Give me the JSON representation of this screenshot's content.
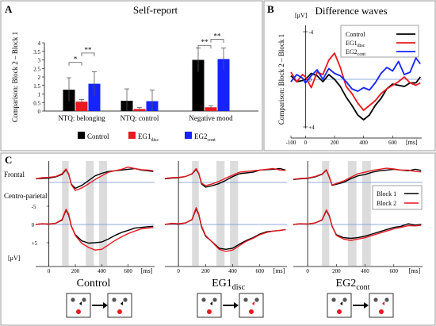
{
  "panel_a": {
    "letter": "A",
    "title": "Self-report",
    "ylabel": "Comparison: Block 2 – Block 1",
    "sig": [
      "*",
      "**",
      "**",
      "**"
    ],
    "legend_main": [
      "Control",
      "EG1",
      "EG2"
    ],
    "legend_sub": [
      "",
      "disc",
      "cont"
    ]
  },
  "panel_b": {
    "letter": "B",
    "title": "Difference waves",
    "unit_label": "[μV]",
    "ms_label": "[ms]",
    "ylabel": "Comparison: Block 2 – Block 1",
    "legend_main": [
      "Control",
      "EG1",
      "EG2"
    ],
    "legend_sub": [
      "",
      "disc",
      "cont"
    ]
  },
  "panel_c": {
    "letter": "C",
    "row_labels": [
      "Frontal",
      "Centro-parietal"
    ],
    "unit_label": "[μV]",
    "ms_label": "[ms]",
    "legend": [
      "Block 1",
      "Block 2"
    ],
    "group_main": [
      "Control",
      "EG1",
      "EG2"
    ],
    "group_sub": [
      "",
      "disc",
      "cont"
    ]
  },
  "colors": {
    "control": "#000000",
    "eg1": "#e8191f",
    "eg2": "#1523ff",
    "block1": "#000000",
    "block2": "#e8191f",
    "zero_line": "#6f8fd6",
    "shade": "#dcdcdc",
    "panel_border": "#9a9a9a"
  },
  "chart_data": [
    {
      "type": "bar",
      "panel": "A",
      "categories": [
        "NTQ: belonging",
        "NTQ: control",
        "Negative mood"
      ],
      "ylim": [
        0,
        4
      ],
      "yticks": [
        0,
        0.5,
        1,
        1.5,
        2,
        2.5,
        3,
        3.5,
        4
      ],
      "ytick_labels": [
        "0",
        "0.5",
        "1",
        "1.5",
        "2",
        "2.5",
        "3",
        "3.5",
        "4"
      ],
      "series": [
        {
          "name": "Control",
          "values": [
            1.25,
            0.6,
            3.0
          ],
          "errors": [
            0.7,
            0.7,
            0.7
          ]
        },
        {
          "name": "EG1disc",
          "values": [
            0.55,
            0.12,
            0.22
          ],
          "errors": [
            0.12,
            0.08,
            0.08
          ]
        },
        {
          "name": "EG2cont",
          "values": [
            1.6,
            0.58,
            3.05
          ],
          "errors": [
            0.7,
            0.65,
            0.65
          ]
        }
      ]
    },
    {
      "type": "line",
      "panel": "B",
      "xlim": [
        -100,
        800
      ],
      "xticks": [
        -100,
        0,
        200,
        400,
        600
      ],
      "xtick_labels": [
        "-100",
        "0",
        "200",
        "400",
        "600"
      ],
      "ylim": [
        -4,
        4
      ],
      "yticks": [
        -4,
        0,
        4
      ],
      "ytick_labels": [
        "-4",
        "0",
        "+4"
      ],
      "y_inverted": true,
      "series": [
        {
          "name": "Control",
          "x": [
            -100,
            -60,
            -20,
            0,
            40,
            80,
            120,
            160,
            200,
            240,
            280,
            320,
            360,
            400,
            440,
            480,
            520,
            560,
            600,
            640,
            680,
            720,
            760,
            790
          ],
          "y": [
            -0.3,
            0.2,
            0.1,
            0,
            -0.5,
            -0.3,
            0.2,
            -0.4,
            0,
            0.6,
            1.5,
            2.2,
            3,
            3.4,
            3.0,
            2.2,
            1.6,
            0.8,
            0.4,
            0.5,
            0.6,
            0.3,
            0.3,
            -0.2
          ]
        },
        {
          "name": "EG1disc",
          "x": [
            -100,
            -60,
            -20,
            0,
            40,
            80,
            120,
            160,
            200,
            240,
            280,
            320,
            360,
            400,
            440,
            480,
            520,
            560,
            600,
            640,
            680,
            720,
            760,
            790
          ],
          "y": [
            -0.6,
            0.2,
            -0.4,
            -0.2,
            0.7,
            -0.6,
            -0.4,
            -1.6,
            -2.2,
            -1.0,
            0.6,
            1.2,
            2.0,
            2.6,
            2.2,
            1.8,
            1.2,
            0.8,
            0.5,
            0.2,
            -0.2,
            0.3,
            0.5,
            0.3
          ]
        },
        {
          "name": "EG2cont",
          "x": [
            -100,
            -60,
            -20,
            0,
            40,
            80,
            120,
            160,
            200,
            240,
            280,
            320,
            360,
            400,
            440,
            480,
            520,
            560,
            600,
            640,
            680,
            720,
            760,
            790
          ],
          "y": [
            0.2,
            -0.4,
            -0.1,
            0.3,
            -0.3,
            -0.8,
            0,
            -0.9,
            -0.5,
            -0.3,
            0.2,
            0.8,
            1.0,
            0.7,
            0.9,
            0.3,
            -0.5,
            -1.0,
            -0.7,
            -1.5,
            -0.4,
            -0.6,
            -1.8,
            -1.3
          ]
        }
      ]
    },
    {
      "type": "line",
      "panel": "C",
      "xlim": [
        -100,
        800
      ],
      "xticks": [
        0,
        200,
        400,
        600
      ],
      "xtick_labels": [
        "0",
        "200",
        "400",
        "600"
      ],
      "ylim": [
        -5,
        5
      ],
      "yticks": [
        -5,
        0,
        5
      ],
      "ytick_labels": [
        "-5",
        "0",
        "+5"
      ],
      "y_inverted": true,
      "shaded_windows": [
        [
          100,
          150
        ],
        [
          280,
          340
        ],
        [
          380,
          440
        ]
      ],
      "groups": [
        {
          "name": "Control",
          "frontal": [
            {
              "name": "Block 1",
              "x": [
                -100,
                -50,
                0,
                50,
                100,
                130,
                150,
                170,
                200,
                250,
                300,
                350,
                400,
                450,
                500,
                550,
                600,
                650,
                700,
                750,
                790
              ],
              "y": [
                -1,
                -1.1,
                -1.2,
                -1.5,
                -2.2,
                -3.5,
                -2.2,
                0.5,
                1.6,
                0.8,
                -0.5,
                -1.8,
                -2.5,
                -3,
                -3.2,
                -3.4,
                -3.6,
                -3.8,
                -3.4,
                -3.2,
                -3.0
              ]
            },
            {
              "name": "Block 2",
              "x": [
                -100,
                -50,
                0,
                50,
                100,
                130,
                150,
                170,
                200,
                250,
                300,
                350,
                400,
                450,
                500,
                550,
                600,
                650,
                700,
                750,
                790
              ],
              "y": [
                -1,
                -1.3,
                -1.4,
                -1.6,
                -2.4,
                -3.7,
                -2.3,
                0.6,
                2.2,
                1.5,
                0.4,
                -0.8,
                -1.8,
                -2.8,
                -3.2,
                -3.6,
                -4.2,
                -3.8,
                -3.5,
                -3.4,
                -3.2
              ]
            }
          ],
          "centro_parietal": [
            {
              "name": "Block 1",
              "x": [
                -100,
                -50,
                0,
                50,
                100,
                130,
                150,
                170,
                200,
                250,
                300,
                350,
                400,
                450,
                500,
                550,
                600,
                650,
                700,
                750,
                790
              ],
              "y": [
                0,
                -0.2,
                -0.1,
                -0.3,
                -1.2,
                -4,
                -2.5,
                0.5,
                2.8,
                4.5,
                5.1,
                5.0,
                4.8,
                4.0,
                3.0,
                2.2,
                1.6,
                1.0,
                0.8,
                0.6,
                0.5
              ]
            },
            {
              "name": "Block 2",
              "x": [
                -100,
                -50,
                0,
                50,
                100,
                130,
                150,
                170,
                200,
                250,
                300,
                350,
                400,
                450,
                500,
                550,
                600,
                650,
                700,
                750,
                790
              ],
              "y": [
                0,
                -0.2,
                -0.1,
                -0.3,
                -1.4,
                -4.2,
                -2.8,
                0.4,
                3.0,
                5.2,
                6.3,
                7.0,
                6.8,
                5.6,
                4.4,
                3.4,
                2.5,
                1.8,
                1.2,
                1.0,
                0.8
              ]
            }
          ]
        },
        {
          "name": "EG1disc",
          "frontal": [
            {
              "name": "Block 1",
              "x": [
                -100,
                -50,
                0,
                50,
                100,
                130,
                150,
                170,
                200,
                250,
                300,
                350,
                400,
                450,
                500,
                550,
                600,
                650,
                700,
                750,
                790
              ],
              "y": [
                -1,
                -1.2,
                -1.3,
                -1.6,
                -2.3,
                -3.6,
                -2.4,
                0.4,
                1.3,
                0.9,
                0.3,
                -0.6,
                -1.6,
                -2.4,
                -2.6,
                -2.8,
                -3.4,
                -3.5,
                -3.6,
                -3.8,
                -3.4
              ]
            },
            {
              "name": "Block 2",
              "x": [
                -100,
                -50,
                0,
                50,
                100,
                130,
                150,
                170,
                200,
                250,
                300,
                350,
                400,
                450,
                500,
                550,
                600,
                650,
                700,
                750,
                790
              ],
              "y": [
                -1.1,
                -1.3,
                -1.4,
                -1.6,
                -2.4,
                -3.8,
                -2.5,
                0.2,
                0.9,
                0.4,
                -0.3,
                -1.2,
                -2.0,
                -2.8,
                -3.0,
                -3.2,
                -3.4,
                -3.6,
                -3.8,
                -3.4,
                -3.3
              ]
            }
          ],
          "centro_parietal": [
            {
              "name": "Block 1",
              "x": [
                -100,
                -50,
                0,
                50,
                100,
                130,
                150,
                170,
                200,
                250,
                300,
                350,
                400,
                450,
                500,
                550,
                600,
                650,
                700,
                750,
                790
              ],
              "y": [
                0,
                -0.2,
                -0.1,
                -0.4,
                -1.3,
                -4.3,
                -2.6,
                0.6,
                3.2,
                4.8,
                6.5,
                6.8,
                6.5,
                5.4,
                4.4,
                3.6,
                2.6,
                2.0,
                1.8,
                1.6,
                1.4
              ]
            },
            {
              "name": "Block 2",
              "x": [
                -100,
                -50,
                0,
                50,
                100,
                130,
                150,
                170,
                200,
                250,
                300,
                350,
                400,
                450,
                500,
                550,
                600,
                650,
                700,
                750,
                790
              ],
              "y": [
                0,
                -0.3,
                -0.2,
                -0.4,
                -1.4,
                -4.6,
                -2.8,
                0.4,
                3.0,
                4.9,
                6.8,
                7.4,
                7.0,
                5.8,
                4.6,
                3.8,
                2.8,
                2.2,
                1.8,
                1.6,
                1.4
              ]
            }
          ]
        },
        {
          "name": "EG2cont",
          "frontal": [
            {
              "name": "Block 1",
              "x": [
                -100,
                -50,
                0,
                50,
                100,
                130,
                150,
                170,
                200,
                250,
                300,
                350,
                400,
                450,
                500,
                550,
                600,
                650,
                700,
                750,
                790
              ],
              "y": [
                -0.8,
                -1.0,
                -1.1,
                -1.5,
                -2.2,
                -3.4,
                -1.5,
                0.8,
                0.5,
                0.0,
                -1.0,
                -1.8,
                -2.2,
                -2.8,
                -3.2,
                -3.4,
                -3.6,
                -3.4,
                -3.2,
                -3.6,
                -3.3
              ]
            },
            {
              "name": "Block 2",
              "x": [
                -100,
                -50,
                0,
                50,
                100,
                130,
                150,
                170,
                200,
                250,
                300,
                350,
                400,
                450,
                500,
                550,
                600,
                650,
                700,
                750,
                790
              ],
              "y": [
                -0.9,
                -1.1,
                -1.2,
                -1.6,
                -2.3,
                -3.5,
                -1.6,
                0.7,
                0.3,
                -0.4,
                -1.4,
                -2.4,
                -2.8,
                -3.3,
                -3.6,
                -3.9,
                -3.7,
                -3.4,
                -3.4,
                -3.0,
                -2.9
              ]
            }
          ],
          "centro_parietal": [
            {
              "name": "Block 1",
              "x": [
                -100,
                -50,
                0,
                50,
                100,
                130,
                150,
                170,
                200,
                250,
                300,
                350,
                400,
                450,
                500,
                550,
                600,
                650,
                700,
                750,
                790
              ],
              "y": [
                0,
                -0.2,
                -0.1,
                -0.4,
                -1.2,
                -3.8,
                -2.4,
                0.5,
                2.8,
                3.6,
                3.8,
                3.6,
                3.2,
                2.6,
                2.0,
                1.4,
                0.8,
                0.5,
                -0.2,
                0.2,
                0.0
              ]
            },
            {
              "name": "Block 2",
              "x": [
                -100,
                -50,
                0,
                50,
                100,
                130,
                150,
                170,
                200,
                250,
                300,
                350,
                400,
                450,
                500,
                550,
                600,
                650,
                700,
                750,
                790
              ],
              "y": [
                0,
                -0.2,
                -0.1,
                -0.4,
                -1.3,
                -4.0,
                -2.5,
                0.4,
                3.0,
                4.0,
                4.4,
                4.0,
                3.6,
                3.0,
                2.4,
                1.8,
                1.2,
                0.8,
                0.3,
                0.4,
                0.2
              ]
            }
          ]
        }
      ]
    }
  ]
}
